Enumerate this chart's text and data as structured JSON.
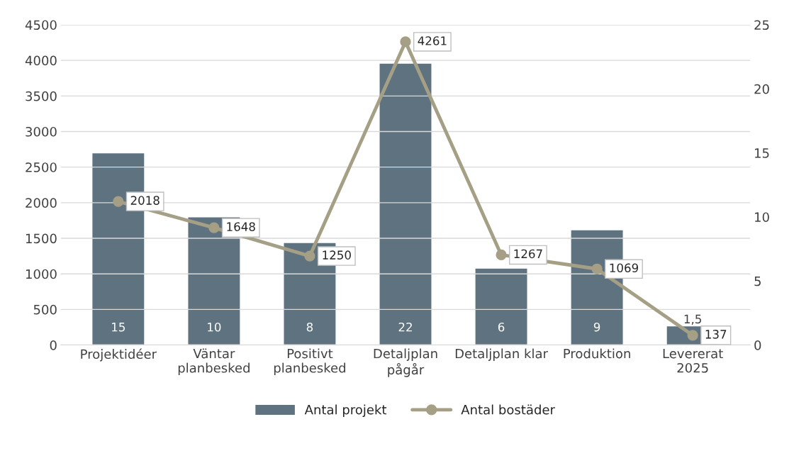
{
  "chart_data": {
    "type": "bar",
    "categories": [
      "Projektidéer",
      "Väntar\nplanbesked",
      "Positivt\nplanbesked",
      "Detaljplan\npågår",
      "Detaljplan klar",
      "Produktion",
      "Levererat\n2025"
    ],
    "series": [
      {
        "name": "Antal projekt",
        "axis": "y2",
        "color": "#5f7280",
        "values": [
          15,
          10,
          8,
          22,
          6,
          9,
          1.5
        ],
        "value_labels": [
          "15",
          "10",
          "8",
          "22",
          "6",
          "9",
          "1,5"
        ]
      },
      {
        "name": "Antal bostäder",
        "type": "line",
        "color": "#a59f85",
        "marker": "circle",
        "values": [
          2018,
          1648,
          1250,
          4261,
          1267,
          1069,
          137
        ],
        "value_labels": [
          "2018",
          "1648",
          "1250",
          "4261",
          "1267",
          "1069",
          "137"
        ]
      }
    ],
    "ylim": [
      0,
      4500
    ],
    "yticks": [
      0,
      500,
      1000,
      1500,
      2000,
      2500,
      3000,
      3500,
      4000,
      4500
    ],
    "y2lim": [
      0,
      25
    ],
    "y2ticks": [
      0,
      5,
      10,
      15,
      20,
      25
    ],
    "grid": "y",
    "legend": "bottom"
  }
}
